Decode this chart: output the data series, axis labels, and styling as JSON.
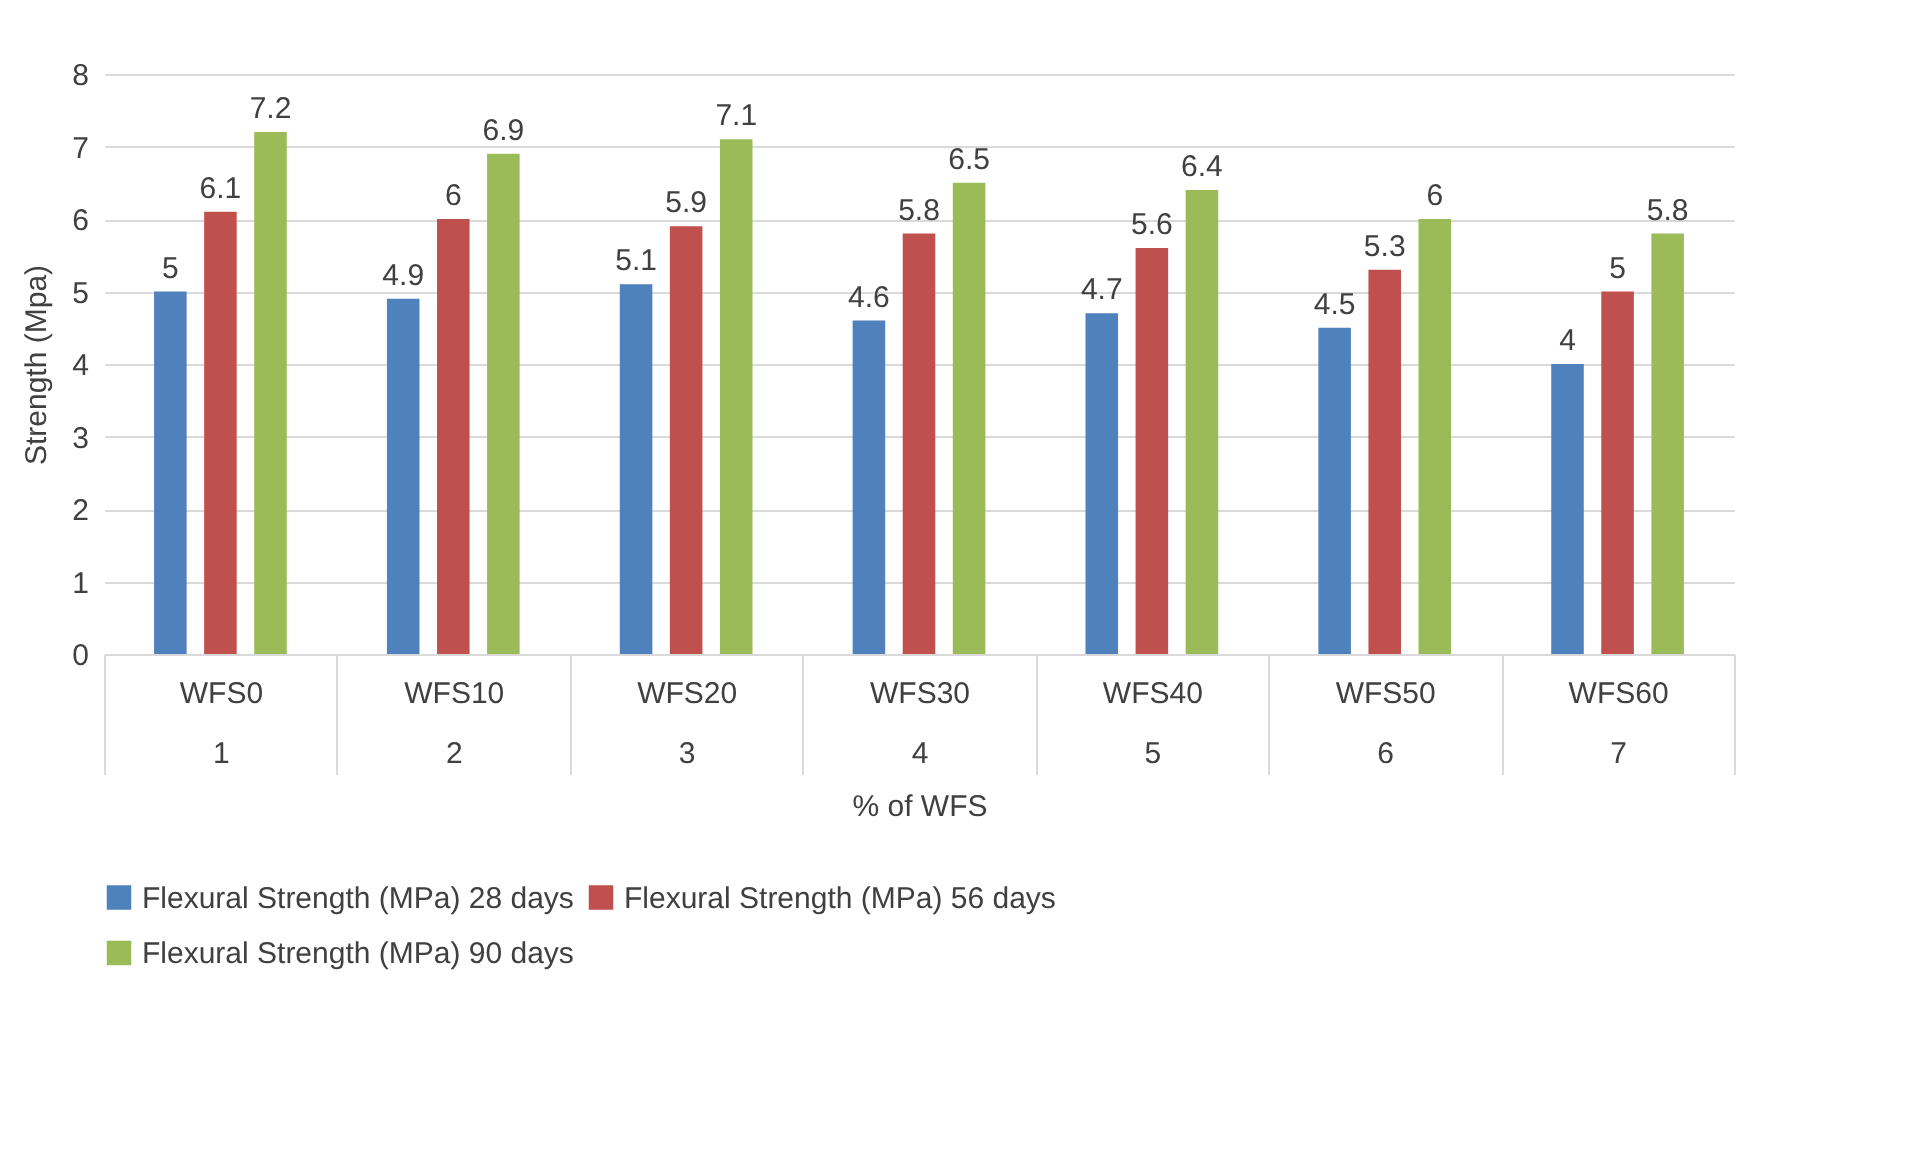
{
  "chart_data": {
    "type": "bar",
    "xlabel": "% of WFS",
    "ylabel": "Strength (Mpa)",
    "categories": [
      "WFS0\n1",
      "WFS10\n2",
      "WFS20\n3",
      "WFS30\n4",
      "WFS40\n5",
      "WFS50\n6",
      "WFS60\n7"
    ],
    "series": [
      {
        "name": "Flexural Strength (MPa) 28 days",
        "color": "#4f81bd",
        "values": [
          5,
          4.9,
          5.1,
          4.6,
          4.7,
          4.5,
          4
        ]
      },
      {
        "name": "Flexural Strength (MPa) 56 days",
        "color": "#c0504d",
        "values": [
          6.1,
          6,
          5.9,
          5.8,
          5.6,
          5.3,
          5
        ]
      },
      {
        "name": "Flexural Strength (MPa) 90 days",
        "color": "#9bbb59",
        "values": [
          7.2,
          6.9,
          7.1,
          6.5,
          6.4,
          6,
          5.8
        ]
      }
    ],
    "ylim": [
      0,
      8
    ],
    "yticks": [
      0,
      1,
      2,
      3,
      4,
      5,
      6,
      7,
      8
    ],
    "grid": "y",
    "legend": "bottom",
    "data_labels": true
  }
}
